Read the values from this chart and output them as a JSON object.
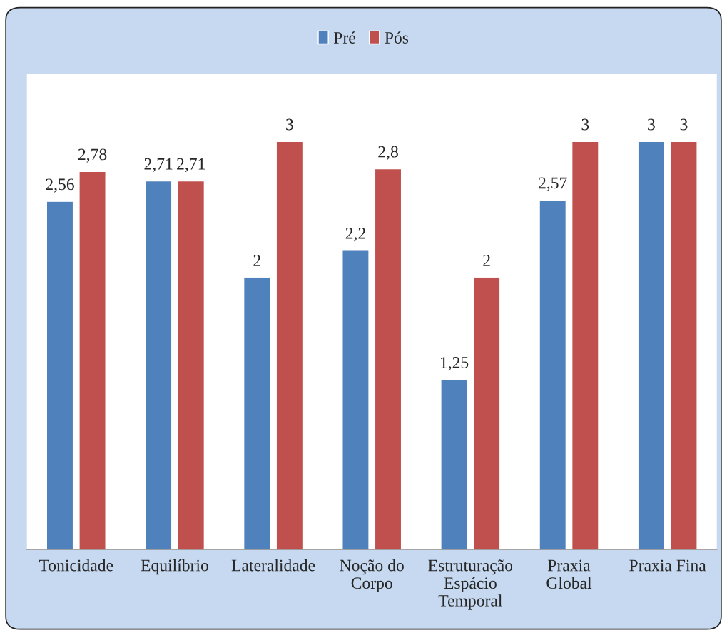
{
  "chart_data": {
    "type": "bar",
    "categories": [
      "Tonicidade",
      "Equilíbrio",
      "Lateralidade",
      "Noção do Corpo",
      "Estruturação Espácio Temporal",
      "Praxia Global",
      "Praxia Fina"
    ],
    "series": [
      {
        "name": "Pré",
        "color": "#4f81bd",
        "values": [
          2.56,
          2.71,
          2,
          2.2,
          1.25,
          2.57,
          3
        ],
        "value_labels": [
          "2,56",
          "2,71",
          "2",
          "2,2",
          "1,25",
          "2,57",
          "3"
        ]
      },
      {
        "name": "Pós",
        "color": "#c0504d",
        "values": [
          2.78,
          2.71,
          3,
          2.8,
          2,
          3,
          3
        ],
        "value_labels": [
          "2,78",
          "2,71",
          "3",
          "2,8",
          "2",
          "3",
          "3"
        ]
      }
    ],
    "legend": "top"
  }
}
